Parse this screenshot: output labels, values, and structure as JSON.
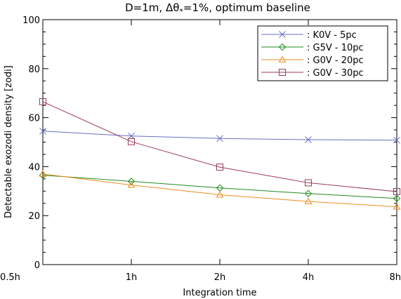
{
  "chart_data": {
    "type": "line",
    "title_parts": {
      "prefix": "D=1m, ",
      "delta": "Δθ",
      "star": "*",
      "suffix": "=1%, optimum baseline"
    },
    "xlabel": "Integration time",
    "ylabel": "Detectable exozodi density [zodi]",
    "categories": [
      "0.5h",
      "1h",
      "2h",
      "4h",
      "8h"
    ],
    "ylim": [
      0,
      100
    ],
    "yticks": [
      0,
      20,
      40,
      60,
      80,
      100
    ],
    "grid": false,
    "legend_position": "top-right",
    "series": [
      {
        "name": ": K0V - 5pc",
        "color": "#6a6fc0",
        "marker": "x",
        "values": [
          54.5,
          52.5,
          51.5,
          51.0,
          50.8
        ]
      },
      {
        "name": ": G5V - 10pc",
        "color": "#1f8c1f",
        "marker": "diamond",
        "values": [
          36.5,
          34.0,
          31.3,
          29.0,
          27.0
        ]
      },
      {
        "name": ": G0V - 20pc",
        "color": "#f08c1e",
        "marker": "triangle",
        "values": [
          37.0,
          32.5,
          28.5,
          25.8,
          23.6
        ]
      },
      {
        "name": ": G0V - 30pc",
        "color": "#9b3a55",
        "marker": "square",
        "values": [
          66.5,
          50.2,
          39.8,
          33.4,
          29.8
        ]
      }
    ]
  }
}
